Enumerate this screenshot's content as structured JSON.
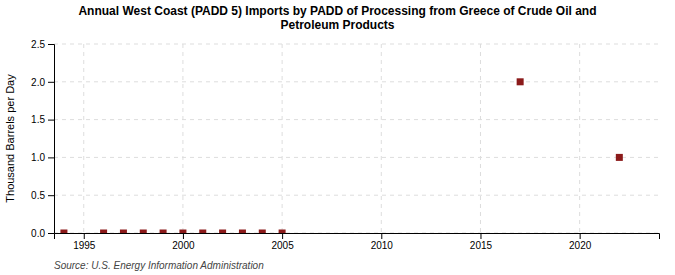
{
  "chart_data": {
    "type": "scatter",
    "title": "Annual West Coast (PADD 5) Imports by PADD of Processing from Greece of Crude Oil and\nPetroleum Products",
    "y_label": "Thousand Barrels per Day",
    "annotations": [
      "Source: U.S. Energy Information Administration"
    ],
    "x": [
      1994,
      1996,
      1997,
      1998,
      1999,
      2000,
      2001,
      2002,
      2003,
      2004,
      2005,
      2017,
      2022
    ],
    "values": [
      0.0,
      0.0,
      0.0,
      0.0,
      0.0,
      0.0,
      0.0,
      0.0,
      0.0,
      0.0,
      0.0,
      2.0,
      1.0
    ],
    "color": "#8b1a1a",
    "marker": "square",
    "xlim": [
      1993.5,
      2024
    ],
    "xticks": [
      1995,
      2000,
      2005,
      2010,
      2015,
      2020
    ],
    "ylim": [
      0,
      2.5
    ],
    "yticks": [
      {
        "value": 0,
        "label": "0.0"
      },
      0.5,
      {
        "value": 1,
        "label": "1.0"
      },
      1.5,
      {
        "value": 2,
        "label": "2.0"
      },
      2.5
    ],
    "grid": true
  }
}
